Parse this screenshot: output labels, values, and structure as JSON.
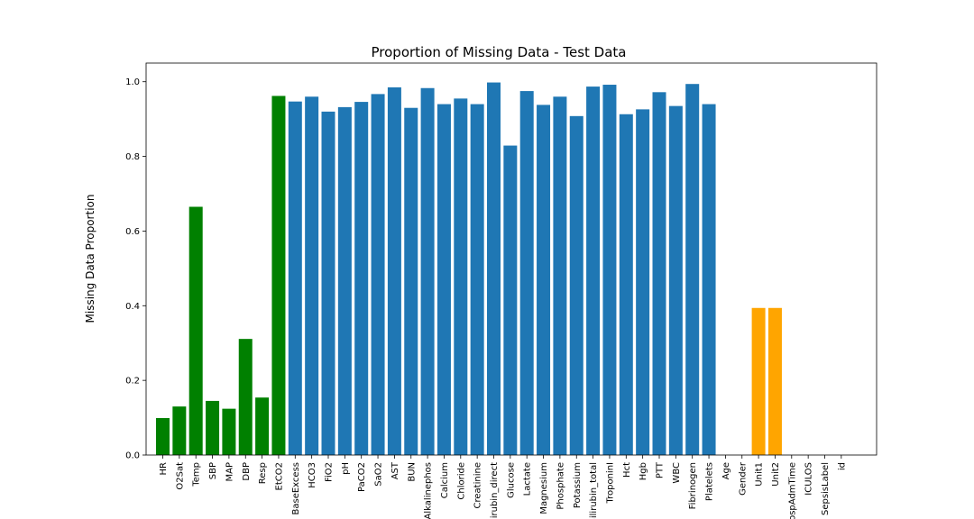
{
  "chart_data": {
    "type": "bar",
    "title": "Proportion of Missing Data - Test Data",
    "xlabel": "",
    "ylabel": "Missing Data Proportion",
    "ylim": [
      0,
      1.05
    ],
    "yticks": [
      0.0,
      0.2,
      0.4,
      0.6,
      0.8,
      1.0
    ],
    "ytick_labels": [
      "0.0",
      "0.2",
      "0.4",
      "0.6",
      "0.8",
      "1.0"
    ],
    "grid": false,
    "legend": "none",
    "colors": {
      "vitals": "#008000",
      "labs": "#1f77b4",
      "demographics": "#ffa500"
    },
    "categories": [
      "HR",
      "O2Sat",
      "Temp",
      "SBP",
      "MAP",
      "DBP",
      "Resp",
      "EtCO2",
      "BaseExcess",
      "HCO3",
      "FiO2",
      "pH",
      "PaCO2",
      "SaO2",
      "AST",
      "BUN",
      "Alkalinephos",
      "Calcium",
      "Chloride",
      "Creatinine",
      "Bilirubin_direct",
      "Glucose",
      "Lactate",
      "Magnesium",
      "Phosphate",
      "Potassium",
      "Bilirubin_total",
      "TroponinI",
      "Hct",
      "Hgb",
      "PTT",
      "WBC",
      "Fibrinogen",
      "Platelets",
      "Age",
      "Gender",
      "Unit1",
      "Unit2",
      "HospAdmTime",
      "ICULOS",
      "SepsisLabel",
      "id"
    ],
    "values": [
      0.099,
      0.13,
      0.665,
      0.145,
      0.124,
      0.311,
      0.154,
      0.962,
      0.947,
      0.96,
      0.92,
      0.932,
      0.946,
      0.967,
      0.985,
      0.93,
      0.983,
      0.94,
      0.955,
      0.94,
      0.998,
      0.829,
      0.975,
      0.938,
      0.96,
      0.908,
      0.987,
      0.992,
      0.913,
      0.926,
      0.972,
      0.935,
      0.994,
      0.94,
      0.0,
      0.0,
      0.394,
      0.394,
      0.0,
      0.0,
      0.0,
      0.0
    ],
    "bar_groups": [
      "vitals",
      "vitals",
      "vitals",
      "vitals",
      "vitals",
      "vitals",
      "vitals",
      "vitals",
      "labs",
      "labs",
      "labs",
      "labs",
      "labs",
      "labs",
      "labs",
      "labs",
      "labs",
      "labs",
      "labs",
      "labs",
      "labs",
      "labs",
      "labs",
      "labs",
      "labs",
      "labs",
      "labs",
      "labs",
      "labs",
      "labs",
      "labs",
      "labs",
      "labs",
      "labs",
      "demographics",
      "demographics",
      "demographics",
      "demographics",
      "demographics",
      "demographics",
      "demographics",
      "demographics"
    ]
  }
}
